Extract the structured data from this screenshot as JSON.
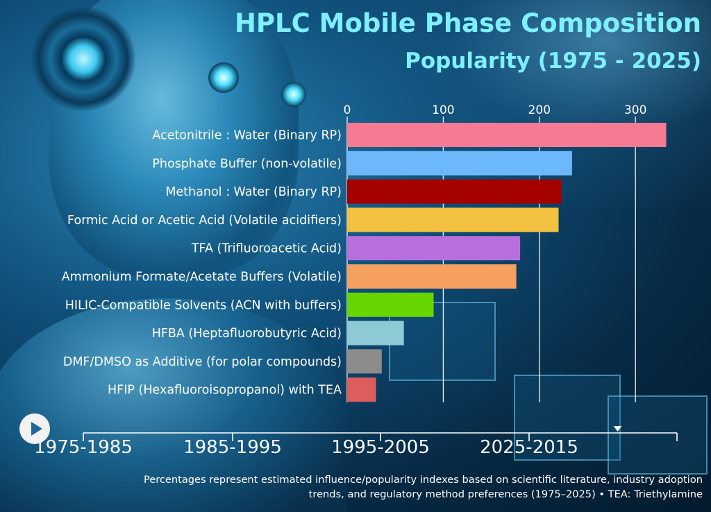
{
  "title": "HPLC Mobile Phase Composition",
  "subtitle": "Popularity (1975 - 2025)",
  "chart_data": {
    "type": "bar",
    "orientation": "horizontal",
    "title": "HPLC Mobile Phase Composition",
    "subtitle": "Popularity (1975 - 2025)",
    "xlabel": "",
    "ylabel": "",
    "xlim": [
      0,
      340
    ],
    "x_ticks": [
      "0",
      "100",
      "200",
      "300"
    ],
    "grid": "vertical",
    "categories": [
      "Acetonitrile : Water (Binary RP)",
      "Phosphate Buffer (non-volatile)",
      "Methanol : Water (Binary RP)",
      "Formic Acid or Acetic Acid (Volatile acidifiers)",
      "TFA (Trifluoroacetic Acid)",
      "Ammonium Formate/Acetate Buffers (Volatile)",
      "HILIC-Compatible Solvents (ACN with buffers)",
      "HFBA (Heptafluorobutyric Acid)",
      "DMF/DMSO as Additive (for polar compounds)",
      "HFIP (Hexafluoroisopropanol) with TEA"
    ],
    "values": [
      332,
      234,
      223,
      220,
      180,
      176,
      90,
      59,
      36,
      30
    ],
    "colors": [
      "#f77a93",
      "#6cb8fa",
      "#a50000",
      "#f2c240",
      "#b66fdc",
      "#f6a060",
      "#67d600",
      "#8ecad6",
      "#8c8c8c",
      "#dd5c5c"
    ]
  },
  "timeline": {
    "periods": [
      "1975-1985",
      "1985-1995",
      "1995-2005",
      "2025-2015"
    ],
    "progress": 0.9
  },
  "footnote": {
    "line1": "Percentages represent estimated influence/popularity indexes based on scientific literature, industry adoption",
    "line2": "trends, and regulatory method preferences (1975–2025) • TEA: Triethylamine"
  }
}
